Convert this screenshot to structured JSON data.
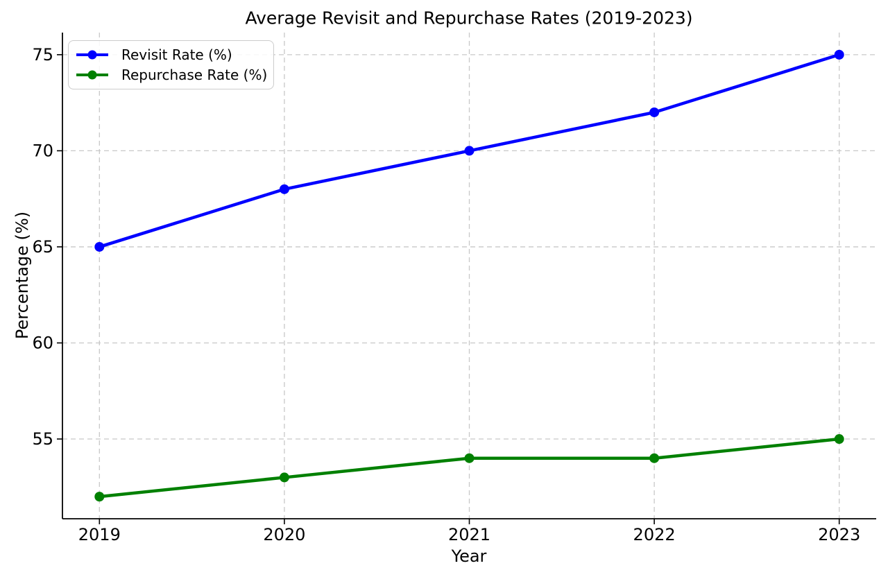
{
  "chart_data": {
    "type": "line",
    "title": "Average Revisit and Repurchase Rates (2019-2023)",
    "xlabel": "Year",
    "ylabel": "Percentage (%)",
    "categories": [
      "2019",
      "2020",
      "2021",
      "2022",
      "2023"
    ],
    "x": [
      2019,
      2020,
      2021,
      2022,
      2023
    ],
    "series": [
      {
        "name": "Revisit Rate (%)",
        "color": "#0000ff",
        "values": [
          65,
          68,
          70,
          72,
          75
        ]
      },
      {
        "name": "Repurchase Rate (%)",
        "color": "#008000",
        "values": [
          52,
          53,
          54,
          54,
          55
        ]
      }
    ],
    "y_ticks": [
      55,
      60,
      65,
      70,
      75
    ],
    "xlim": [
      2018.8,
      2023.2
    ],
    "ylim": [
      50.85,
      76.15
    ],
    "grid": true,
    "grid_style": "dashed",
    "grid_color": "#c8c8c8",
    "spine_color": "#000000",
    "text_color": "#000000",
    "background": "#ffffff",
    "legend_position": "upper-left",
    "marker": "circle"
  }
}
